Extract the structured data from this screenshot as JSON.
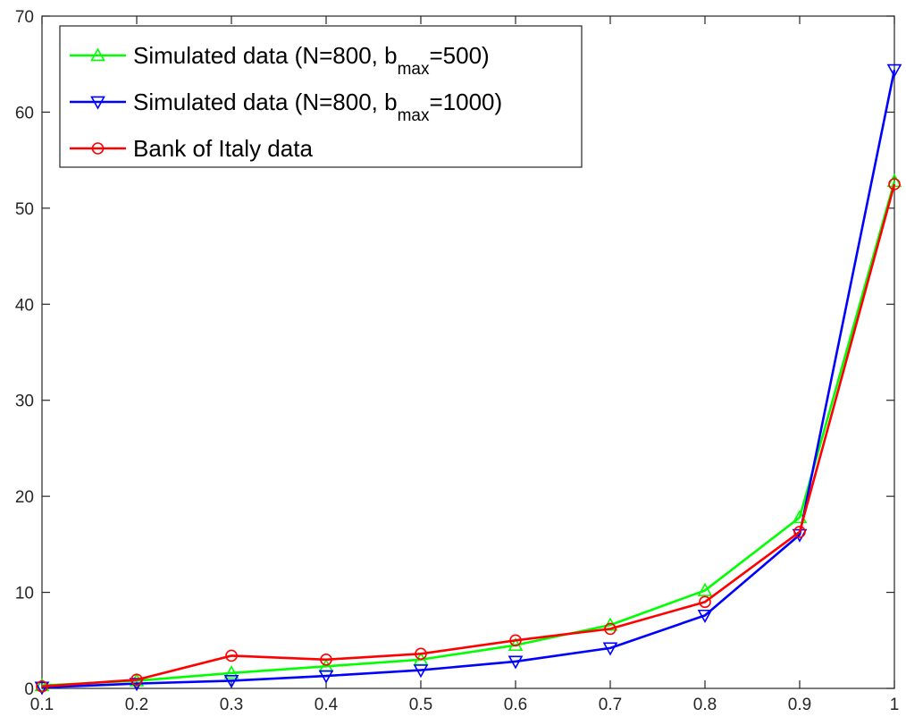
{
  "chart_data": {
    "type": "line",
    "title": "",
    "xlabel": "",
    "ylabel": "",
    "xlim": [
      0.1,
      1
    ],
    "ylim": [
      0,
      70
    ],
    "grid": false,
    "legend_position": "top-left",
    "x": [
      0.1,
      0.2,
      0.3,
      0.4,
      0.5,
      0.6,
      0.7,
      0.8,
      0.9,
      1
    ],
    "x_tick_labels": [
      "0.1",
      "0.2",
      "0.3",
      "0.4",
      "0.5",
      "0.6",
      "0.7",
      "0.8",
      "0.9",
      "1"
    ],
    "y_tick_labels": [
      "0",
      "10",
      "20",
      "30",
      "40",
      "50",
      "60",
      "70"
    ],
    "series": [
      {
        "name_parts": [
          "Simulated data (N=800, b",
          "max",
          "=500)"
        ],
        "color": "#00ff00",
        "marker": "triangle-up",
        "values": [
          0.3,
          0.8,
          1.6,
          2.3,
          3.0,
          4.5,
          6.6,
          10.2,
          17.8,
          52.8
        ]
      },
      {
        "name_parts": [
          "Simulated data (N=800, b",
          "max",
          "=1000)"
        ],
        "color": "#0000ff",
        "marker": "triangle-down",
        "values": [
          0.1,
          0.5,
          0.8,
          1.3,
          1.9,
          2.8,
          4.2,
          7.6,
          16.0,
          64.4
        ]
      },
      {
        "name_parts": [
          "Bank of Italy data",
          "",
          ""
        ],
        "color": "#ff0000",
        "marker": "circle",
        "values": [
          0.2,
          0.9,
          3.4,
          3.0,
          3.6,
          5.0,
          6.2,
          9.0,
          16.3,
          52.5
        ]
      }
    ]
  }
}
